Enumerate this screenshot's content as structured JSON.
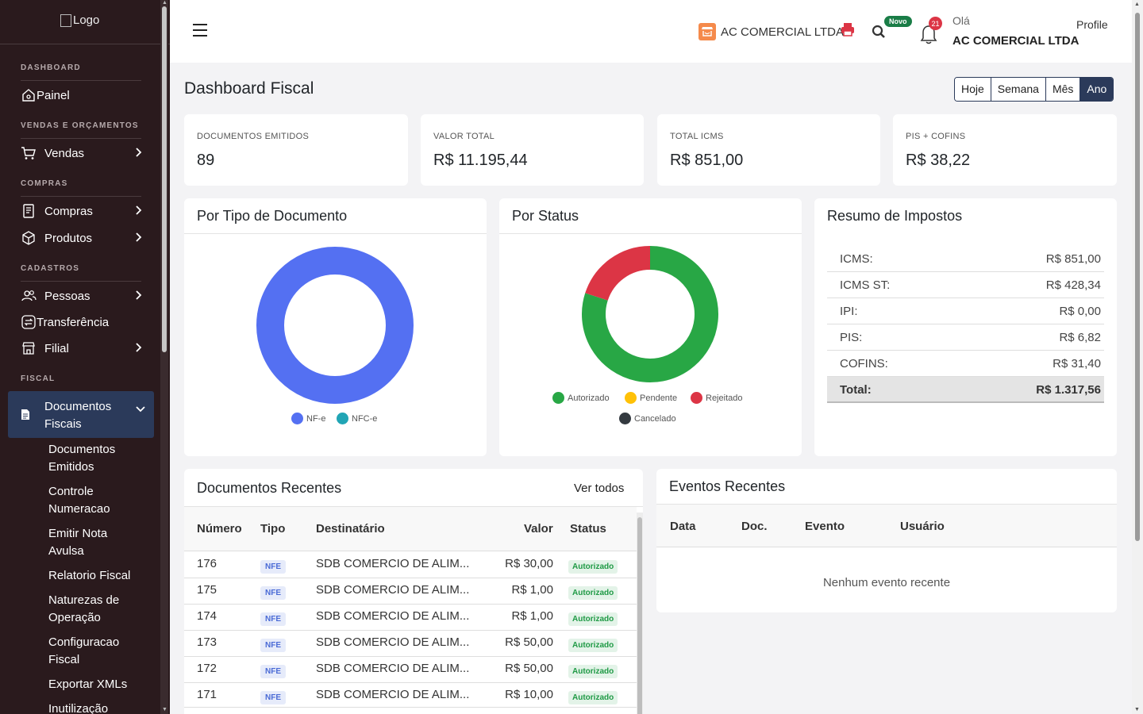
{
  "sidebar": {
    "logo_alt": "Logo",
    "sections": {
      "dashboard": "DASHBOARD",
      "vendas": "VENDAS E ORÇAMENTOS",
      "compras": "COMPRAS",
      "cadastros": "CADASTROS",
      "fiscal": "FISCAL"
    },
    "items": {
      "painel": "Painel",
      "vendas": "Vendas",
      "compras": "Compras",
      "produtos": "Produtos",
      "pessoas": "Pessoas",
      "transferencia": "Transferência",
      "filial": "Filial",
      "documentos_fiscais": "Documentos Fiscais"
    },
    "subitems": [
      "Documentos Emitidos",
      "Controle Numeracao",
      "Emitir Nota Avulsa",
      "Relatorio Fiscal",
      "Naturezas de Operação",
      "Configuracao Fiscal",
      "Exportar XMLs",
      "Inutilização"
    ]
  },
  "header": {
    "company": "AC COMERCIAL LTDA",
    "novo_badge": "Novo",
    "notifications_count": "21",
    "greeting": "Olá",
    "user_name": "AC COMERCIAL LTDA",
    "profile_alt": "Profile"
  },
  "page": {
    "title": "Dashboard Fiscal",
    "periods": [
      "Hoje",
      "Semana",
      "Mês",
      "Ano"
    ],
    "active_period": "Ano"
  },
  "stats": [
    {
      "label": "DOCUMENTOS EMITIDOS",
      "value": "89"
    },
    {
      "label": "VALOR TOTAL",
      "value": "R$ 11.195,44"
    },
    {
      "label": "TOTAL ICMS",
      "value": "R$ 851,00"
    },
    {
      "label": "PIS + COFINS",
      "value": "R$ 38,22"
    }
  ],
  "panels": {
    "tipo_title": "Por Tipo de Documento",
    "status_title": "Por Status",
    "impostos_title": "Resumo de Impostos"
  },
  "colors": {
    "nfe": "#5470f2",
    "nfce": "#21a5b5",
    "autorizado": "#28a745",
    "pendente": "#ffc107",
    "rejeitado": "#dc3545",
    "cancelado": "#343a40",
    "primary": "#2b3a5a"
  },
  "chart_data": [
    {
      "type": "pie",
      "legend": [
        "NF-e",
        "NFC-e"
      ],
      "values": [
        100,
        0
      ]
    },
    {
      "type": "pie",
      "legend": [
        "Autorizado",
        "Pendente",
        "Rejeitado",
        "Cancelado"
      ],
      "values": [
        80,
        0,
        20,
        0
      ]
    }
  ],
  "taxes": [
    {
      "label": "ICMS:",
      "value": "R$ 851,00"
    },
    {
      "label": "ICMS ST:",
      "value": "R$ 428,34"
    },
    {
      "label": "IPI:",
      "value": "R$ 0,00"
    },
    {
      "label": "PIS:",
      "value": "R$ 6,82"
    },
    {
      "label": "COFINS:",
      "value": "R$ 31,40"
    },
    {
      "label": "Total:",
      "value": "R$ 1.317,56"
    }
  ],
  "recent_docs": {
    "title": "Documentos Recentes",
    "view_all": "Ver todos",
    "columns": [
      "Número",
      "Tipo",
      "Destinatário",
      "Valor",
      "Status"
    ],
    "rows": [
      {
        "numero": "176",
        "tipo": "NFE",
        "destinatario": "SDB COMERCIO DE ALIM...",
        "valor": "R$ 30,00",
        "status": "Autorizado"
      },
      {
        "numero": "175",
        "tipo": "NFE",
        "destinatario": "SDB COMERCIO DE ALIM...",
        "valor": "R$ 1,00",
        "status": "Autorizado"
      },
      {
        "numero": "174",
        "tipo": "NFE",
        "destinatario": "SDB COMERCIO DE ALIM...",
        "valor": "R$ 1,00",
        "status": "Autorizado"
      },
      {
        "numero": "173",
        "tipo": "NFE",
        "destinatario": "SDB COMERCIO DE ALIM...",
        "valor": "R$ 50,00",
        "status": "Autorizado"
      },
      {
        "numero": "172",
        "tipo": "NFE",
        "destinatario": "SDB COMERCIO DE ALIM...",
        "valor": "R$ 50,00",
        "status": "Autorizado"
      },
      {
        "numero": "171",
        "tipo": "NFE",
        "destinatario": "SDB COMERCIO DE ALIM...",
        "valor": "R$ 10,00",
        "status": "Autorizado"
      }
    ]
  },
  "recent_events": {
    "title": "Eventos Recentes",
    "columns": [
      "Data",
      "Doc.",
      "Evento",
      "Usuário"
    ],
    "empty": "Nenhum evento recente"
  }
}
